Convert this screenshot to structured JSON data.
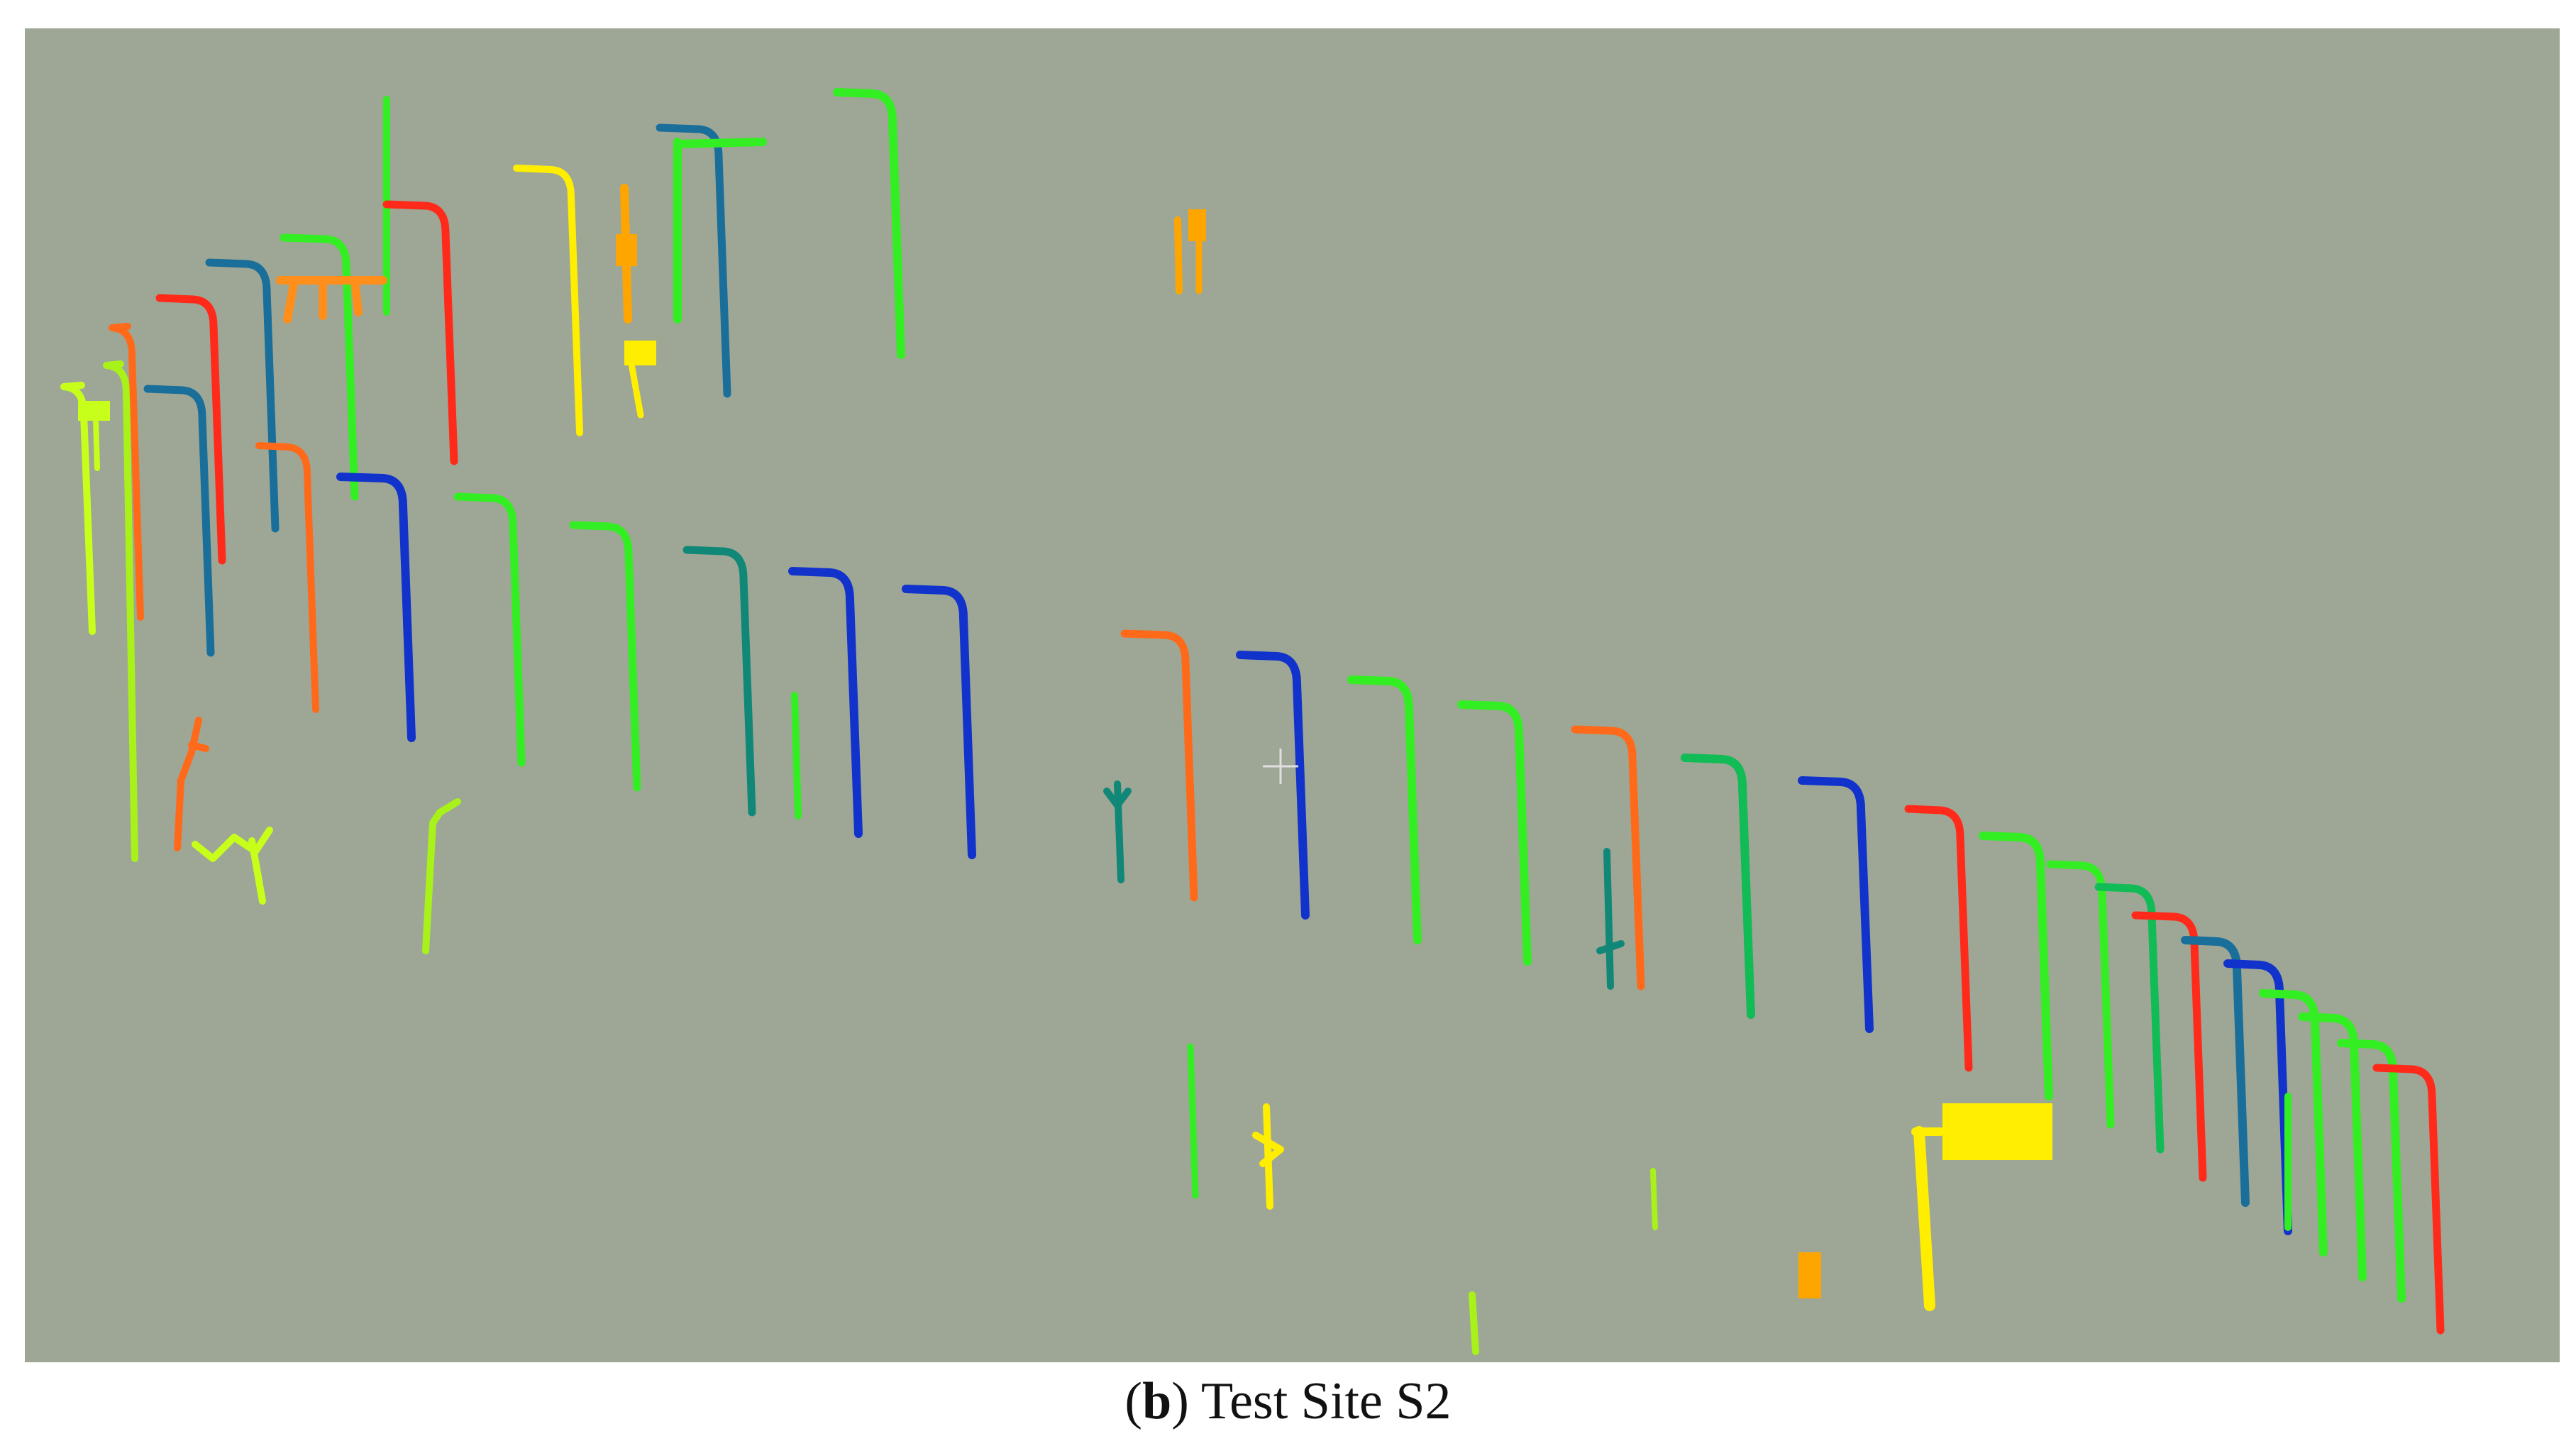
{
  "figure": {
    "caption_label": "b",
    "caption_text": "Test Site S2"
  },
  "colors": {
    "background": "#9ea795",
    "red": "#ff2a1a",
    "orange": "#ff6a1a",
    "light_orange": "#ff8f1a",
    "amber": "#ffa500",
    "yellow": "#ffee00",
    "lime": "#c8ff1a",
    "yellow_green": "#a8f21a",
    "green": "#33ee22",
    "emerald": "#11bb55",
    "teal": "#118877",
    "steel_blue": "#1a6e9a",
    "blue": "#1133cc"
  }
}
